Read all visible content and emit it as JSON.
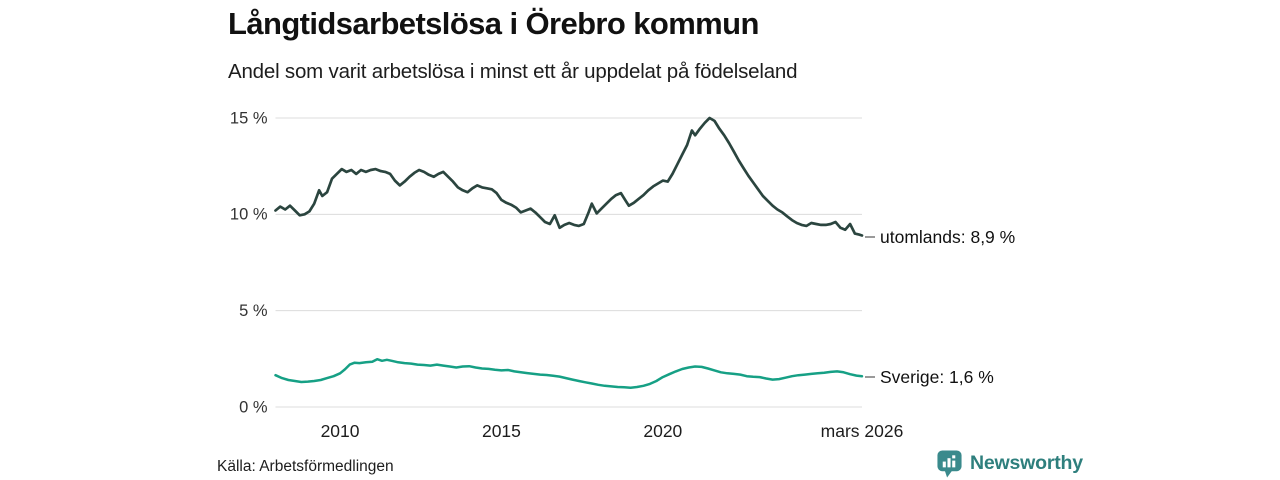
{
  "header": {},
  "chart_data": {
    "type": "line",
    "title": "Långtidsarbetslösa i Örebro kommun",
    "subtitle": "Andel som varit arbetslösa i minst ett år uppdelat på födelseland",
    "grid": true,
    "legend_position": "right-end-labels",
    "x_axis": {
      "range": [
        2008.0,
        2026.17
      ],
      "ticks": [
        {
          "x": 2010,
          "label": "2010"
        },
        {
          "x": 2015,
          "label": "2015"
        },
        {
          "x": 2020,
          "label": "2020"
        },
        {
          "x": 2026.17,
          "label": "mars 2026"
        }
      ]
    },
    "y_axis": {
      "range": [
        0,
        15
      ],
      "unit": "%",
      "ticks": [
        {
          "value": 0,
          "label": "0 %"
        },
        {
          "value": 5,
          "label": "5 %"
        },
        {
          "value": 10,
          "label": "10 %"
        },
        {
          "value": 15,
          "label": "15 %"
        }
      ]
    },
    "series": [
      {
        "name": "utomlands",
        "end_value": "8,9 %",
        "end_label": "utomlands: 8,9 %",
        "color": "#2b453f",
        "stroke_width": 2.7,
        "points": [
          [
            2008.0,
            10.2
          ],
          [
            2008.15,
            10.4
          ],
          [
            2008.3,
            10.25
          ],
          [
            2008.45,
            10.45
          ],
          [
            2008.6,
            10.2
          ],
          [
            2008.75,
            9.95
          ],
          [
            2008.9,
            10.0
          ],
          [
            2009.05,
            10.15
          ],
          [
            2009.2,
            10.55
          ],
          [
            2009.35,
            11.25
          ],
          [
            2009.45,
            10.95
          ],
          [
            2009.6,
            11.15
          ],
          [
            2009.75,
            11.85
          ],
          [
            2009.9,
            12.1
          ],
          [
            2010.05,
            12.35
          ],
          [
            2010.2,
            12.2
          ],
          [
            2010.35,
            12.3
          ],
          [
            2010.5,
            12.1
          ],
          [
            2010.65,
            12.3
          ],
          [
            2010.8,
            12.2
          ],
          [
            2010.95,
            12.3
          ],
          [
            2011.1,
            12.35
          ],
          [
            2011.25,
            12.25
          ],
          [
            2011.4,
            12.2
          ],
          [
            2011.55,
            12.1
          ],
          [
            2011.7,
            11.75
          ],
          [
            2011.85,
            11.5
          ],
          [
            2012.0,
            11.7
          ],
          [
            2012.15,
            11.95
          ],
          [
            2012.3,
            12.15
          ],
          [
            2012.45,
            12.3
          ],
          [
            2012.6,
            12.2
          ],
          [
            2012.75,
            12.05
          ],
          [
            2012.9,
            11.95
          ],
          [
            2013.05,
            12.1
          ],
          [
            2013.2,
            12.2
          ],
          [
            2013.35,
            11.95
          ],
          [
            2013.5,
            11.7
          ],
          [
            2013.65,
            11.4
          ],
          [
            2013.8,
            11.25
          ],
          [
            2013.95,
            11.15
          ],
          [
            2014.1,
            11.35
          ],
          [
            2014.25,
            11.5
          ],
          [
            2014.4,
            11.4
          ],
          [
            2014.55,
            11.35
          ],
          [
            2014.7,
            11.3
          ],
          [
            2014.85,
            11.1
          ],
          [
            2015.0,
            10.75
          ],
          [
            2015.15,
            10.6
          ],
          [
            2015.3,
            10.5
          ],
          [
            2015.45,
            10.35
          ],
          [
            2015.6,
            10.1
          ],
          [
            2015.75,
            10.2
          ],
          [
            2015.9,
            10.3
          ],
          [
            2016.05,
            10.1
          ],
          [
            2016.2,
            9.85
          ],
          [
            2016.35,
            9.6
          ],
          [
            2016.5,
            9.5
          ],
          [
            2016.65,
            9.95
          ],
          [
            2016.8,
            9.3
          ],
          [
            2016.95,
            9.45
          ],
          [
            2017.1,
            9.55
          ],
          [
            2017.25,
            9.45
          ],
          [
            2017.4,
            9.4
          ],
          [
            2017.55,
            9.5
          ],
          [
            2017.7,
            10.1
          ],
          [
            2017.8,
            10.55
          ],
          [
            2017.95,
            10.05
          ],
          [
            2018.1,
            10.3
          ],
          [
            2018.25,
            10.55
          ],
          [
            2018.4,
            10.8
          ],
          [
            2018.55,
            11.0
          ],
          [
            2018.7,
            11.1
          ],
          [
            2018.85,
            10.7
          ],
          [
            2018.95,
            10.45
          ],
          [
            2019.1,
            10.6
          ],
          [
            2019.25,
            10.8
          ],
          [
            2019.4,
            11.0
          ],
          [
            2019.55,
            11.25
          ],
          [
            2019.7,
            11.45
          ],
          [
            2019.85,
            11.6
          ],
          [
            2020.0,
            11.75
          ],
          [
            2020.15,
            11.7
          ],
          [
            2020.3,
            12.1
          ],
          [
            2020.45,
            12.6
          ],
          [
            2020.6,
            13.1
          ],
          [
            2020.75,
            13.6
          ],
          [
            2020.9,
            14.35
          ],
          [
            2021.0,
            14.1
          ],
          [
            2021.15,
            14.45
          ],
          [
            2021.3,
            14.75
          ],
          [
            2021.45,
            15.0
          ],
          [
            2021.6,
            14.85
          ],
          [
            2021.75,
            14.45
          ],
          [
            2021.9,
            14.1
          ],
          [
            2022.05,
            13.7
          ],
          [
            2022.2,
            13.25
          ],
          [
            2022.35,
            12.8
          ],
          [
            2022.5,
            12.4
          ],
          [
            2022.65,
            12.0
          ],
          [
            2022.8,
            11.65
          ],
          [
            2022.95,
            11.3
          ],
          [
            2023.1,
            10.95
          ],
          [
            2023.25,
            10.7
          ],
          [
            2023.4,
            10.45
          ],
          [
            2023.55,
            10.25
          ],
          [
            2023.7,
            10.1
          ],
          [
            2023.85,
            9.9
          ],
          [
            2024.0,
            9.7
          ],
          [
            2024.15,
            9.55
          ],
          [
            2024.3,
            9.45
          ],
          [
            2024.45,
            9.4
          ],
          [
            2024.6,
            9.55
          ],
          [
            2024.75,
            9.5
          ],
          [
            2024.9,
            9.45
          ],
          [
            2025.05,
            9.45
          ],
          [
            2025.2,
            9.5
          ],
          [
            2025.35,
            9.6
          ],
          [
            2025.5,
            9.3
          ],
          [
            2025.65,
            9.2
          ],
          [
            2025.8,
            9.5
          ],
          [
            2025.95,
            9.0
          ],
          [
            2026.08,
            8.95
          ],
          [
            2026.17,
            8.9
          ]
        ]
      },
      {
        "name": "Sverige",
        "end_value": "1,6 %",
        "end_label": "Sverige: 1,6 %",
        "color": "#16a085",
        "stroke_width": 2.5,
        "points": [
          [
            2008.0,
            1.65
          ],
          [
            2008.2,
            1.5
          ],
          [
            2008.4,
            1.4
          ],
          [
            2008.6,
            1.35
          ],
          [
            2008.8,
            1.3
          ],
          [
            2009.0,
            1.32
          ],
          [
            2009.2,
            1.35
          ],
          [
            2009.4,
            1.4
          ],
          [
            2009.6,
            1.5
          ],
          [
            2009.8,
            1.6
          ],
          [
            2010.0,
            1.75
          ],
          [
            2010.15,
            1.95
          ],
          [
            2010.3,
            2.2
          ],
          [
            2010.45,
            2.3
          ],
          [
            2010.6,
            2.28
          ],
          [
            2010.8,
            2.32
          ],
          [
            2011.0,
            2.35
          ],
          [
            2011.15,
            2.48
          ],
          [
            2011.3,
            2.4
          ],
          [
            2011.45,
            2.45
          ],
          [
            2011.6,
            2.4
          ],
          [
            2011.8,
            2.32
          ],
          [
            2012.0,
            2.28
          ],
          [
            2012.2,
            2.25
          ],
          [
            2012.4,
            2.2
          ],
          [
            2012.6,
            2.18
          ],
          [
            2012.8,
            2.15
          ],
          [
            2013.0,
            2.2
          ],
          [
            2013.2,
            2.15
          ],
          [
            2013.4,
            2.1
          ],
          [
            2013.6,
            2.05
          ],
          [
            2013.8,
            2.1
          ],
          [
            2014.0,
            2.12
          ],
          [
            2014.2,
            2.05
          ],
          [
            2014.4,
            2.0
          ],
          [
            2014.6,
            1.98
          ],
          [
            2014.8,
            1.93
          ],
          [
            2015.0,
            1.9
          ],
          [
            2015.2,
            1.92
          ],
          [
            2015.4,
            1.85
          ],
          [
            2015.6,
            1.8
          ],
          [
            2015.8,
            1.76
          ],
          [
            2016.0,
            1.72
          ],
          [
            2016.2,
            1.68
          ],
          [
            2016.4,
            1.66
          ],
          [
            2016.6,
            1.62
          ],
          [
            2016.8,
            1.58
          ],
          [
            2017.0,
            1.5
          ],
          [
            2017.2,
            1.42
          ],
          [
            2017.4,
            1.35
          ],
          [
            2017.6,
            1.28
          ],
          [
            2017.8,
            1.22
          ],
          [
            2018.0,
            1.15
          ],
          [
            2018.2,
            1.1
          ],
          [
            2018.4,
            1.07
          ],
          [
            2018.6,
            1.04
          ],
          [
            2018.8,
            1.02
          ],
          [
            2019.0,
            1.0
          ],
          [
            2019.2,
            1.04
          ],
          [
            2019.4,
            1.1
          ],
          [
            2019.6,
            1.2
          ],
          [
            2019.8,
            1.35
          ],
          [
            2020.0,
            1.55
          ],
          [
            2020.2,
            1.7
          ],
          [
            2020.4,
            1.85
          ],
          [
            2020.6,
            1.97
          ],
          [
            2020.8,
            2.05
          ],
          [
            2021.0,
            2.1
          ],
          [
            2021.2,
            2.08
          ],
          [
            2021.4,
            2.0
          ],
          [
            2021.6,
            1.9
          ],
          [
            2021.8,
            1.8
          ],
          [
            2022.0,
            1.75
          ],
          [
            2022.2,
            1.72
          ],
          [
            2022.4,
            1.68
          ],
          [
            2022.6,
            1.6
          ],
          [
            2022.8,
            1.57
          ],
          [
            2023.0,
            1.55
          ],
          [
            2023.2,
            1.48
          ],
          [
            2023.4,
            1.42
          ],
          [
            2023.6,
            1.45
          ],
          [
            2023.8,
            1.52
          ],
          [
            2024.0,
            1.6
          ],
          [
            2024.2,
            1.65
          ],
          [
            2024.4,
            1.68
          ],
          [
            2024.6,
            1.72
          ],
          [
            2024.8,
            1.75
          ],
          [
            2025.0,
            1.78
          ],
          [
            2025.2,
            1.82
          ],
          [
            2025.4,
            1.85
          ],
          [
            2025.6,
            1.8
          ],
          [
            2025.8,
            1.7
          ],
          [
            2026.0,
            1.63
          ],
          [
            2026.17,
            1.6
          ]
        ]
      }
    ],
    "colors": {
      "grid": "#dcdcdc",
      "tick_text": "#333333",
      "axis_text": "#1d1d1d",
      "connector": "#9a9a9a"
    }
  },
  "footer": {
    "source": "Källa: Arbetsförmedlingen",
    "brand": "Newsworthy",
    "brand_color": "#2e7f7d",
    "logo_color": "#3a8a8c"
  }
}
